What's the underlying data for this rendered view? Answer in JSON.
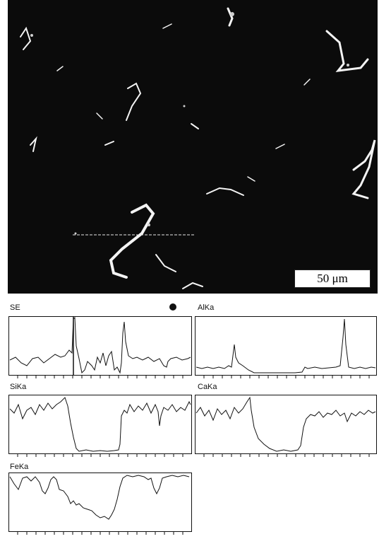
{
  "micrograph": {
    "scale_bar_label": "50 μm"
  },
  "line_scans": {
    "se_label": "SE",
    "al_label": "AlKa",
    "si_label": "SiKa",
    "ca_label": "CaKa",
    "fe_label": "FeKa"
  },
  "colors": {
    "background": "#ffffff",
    "micrograph": "#0b0b0b",
    "trace": "#111111"
  }
}
